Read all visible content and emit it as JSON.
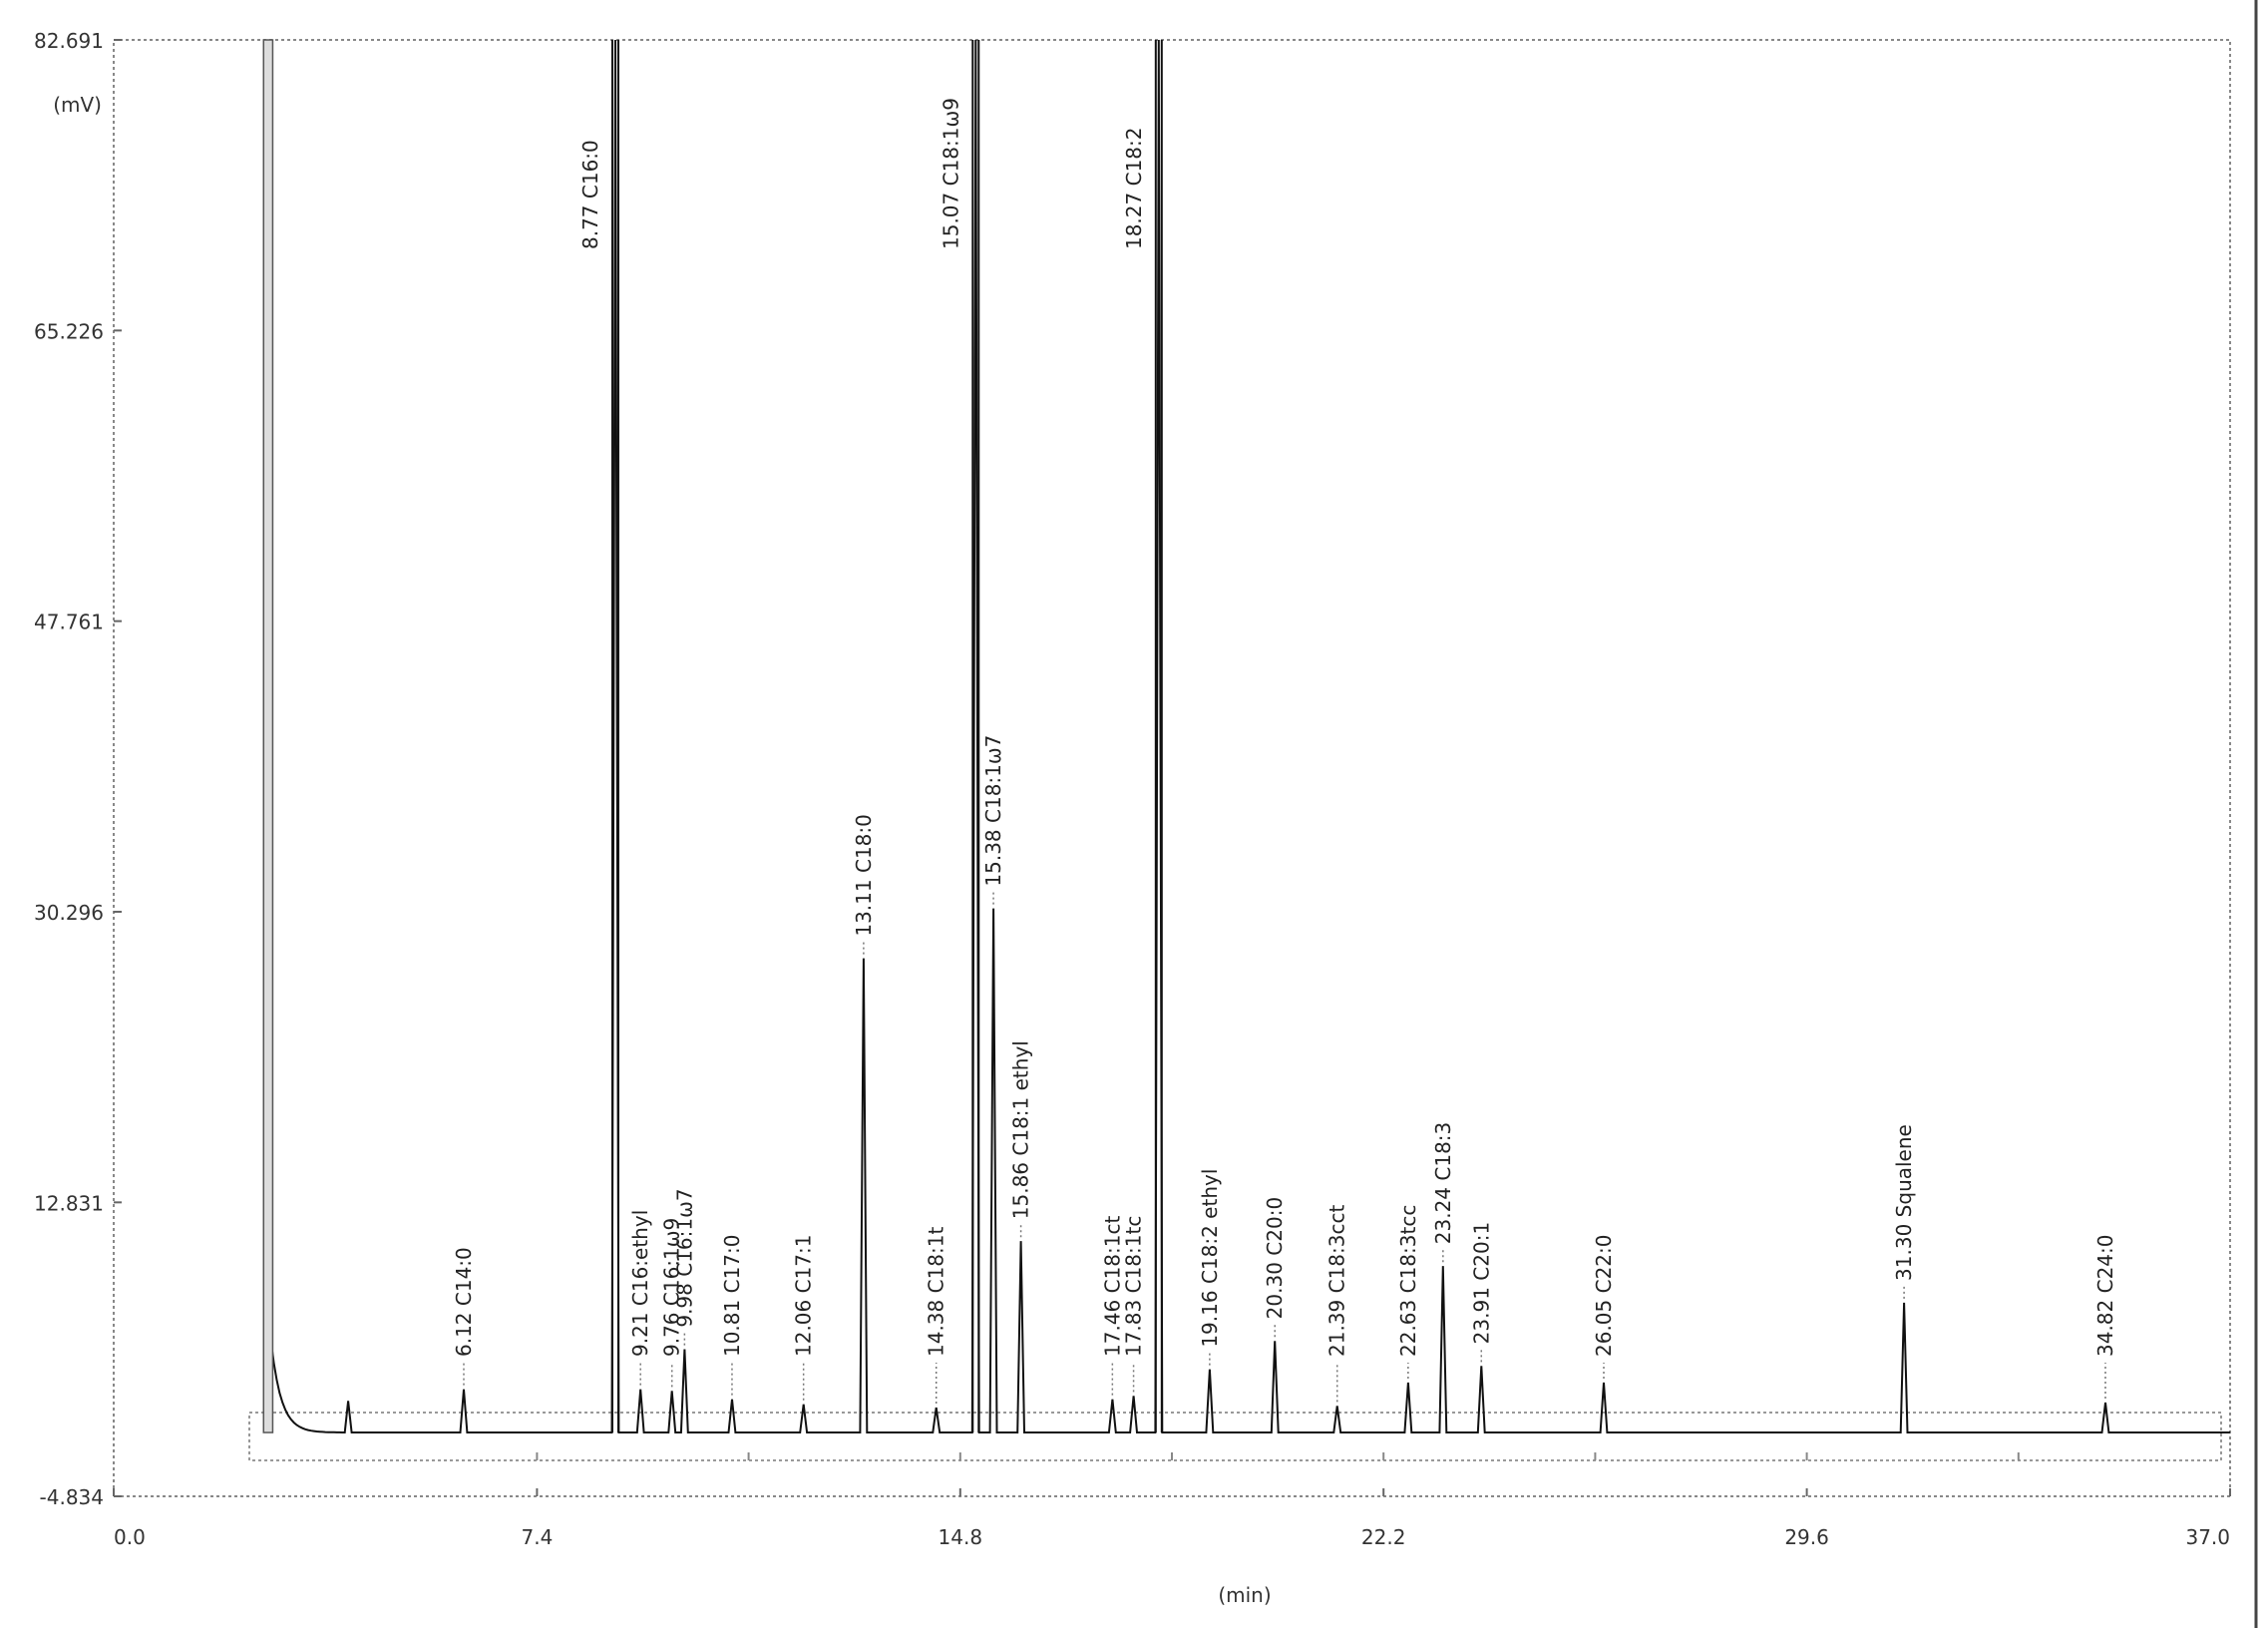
{
  "chart_data": {
    "type": "line",
    "title": "",
    "xlabel": "(min)",
    "ylabel": "(mV)",
    "xlim": [
      0.0,
      37.0
    ],
    "ylim": [
      -4.834,
      82.691
    ],
    "x_ticks": [
      "0.0",
      "7.4",
      "14.8",
      "22.2",
      "29.6",
      "37.0"
    ],
    "y_ticks": [
      "82.691",
      "65.226",
      "47.761",
      "30.296",
      "12.831",
      "-4.834"
    ],
    "grid": false,
    "series": [
      {
        "peaks": [
          {
            "rt": 2.7,
            "height": 82.691,
            "label": ""
          },
          {
            "rt": 4.1,
            "height": 0.9,
            "label": ""
          },
          {
            "rt": 6.12,
            "height": 1.6,
            "label": "6.12 C14:0"
          },
          {
            "rt": 8.77,
            "height": 82.691,
            "label": "8.77 C16:0"
          },
          {
            "rt": 9.21,
            "height": 1.6,
            "label": "9.21 C16:ethyl"
          },
          {
            "rt": 9.76,
            "height": 1.5,
            "label": "9.76 C16:1ω9"
          },
          {
            "rt": 9.98,
            "height": 4.0,
            "label": "9.98 C16:1ω7"
          },
          {
            "rt": 10.81,
            "height": 1.0,
            "label": "10.81 C17:0"
          },
          {
            "rt": 12.06,
            "height": 0.7,
            "label": "12.06 C17:1"
          },
          {
            "rt": 13.11,
            "height": 27.5,
            "label": "13.11 C18:0"
          },
          {
            "rt": 14.38,
            "height": 0.5,
            "label": "14.38 C18:1t"
          },
          {
            "rt": 15.07,
            "height": 82.691,
            "label": "15.07 C18:1ω9"
          },
          {
            "rt": 15.38,
            "height": 30.5,
            "label": "15.38 C18:1ω7"
          },
          {
            "rt": 15.86,
            "height": 10.5,
            "label": "15.86 C18:1 ethyl"
          },
          {
            "rt": 17.46,
            "height": 1.0,
            "label": "17.46 C18:1ct"
          },
          {
            "rt": 17.83,
            "height": 1.2,
            "label": "17.83 C18:1tc"
          },
          {
            "rt": 18.27,
            "height": 82.691,
            "label": "18.27 C18:2"
          },
          {
            "rt": 19.16,
            "height": 2.8,
            "label": "19.16 C18:2 ethyl"
          },
          {
            "rt": 20.3,
            "height": 4.5,
            "label": "20.30 C20:0"
          },
          {
            "rt": 21.39,
            "height": 0.6,
            "label": "21.39 C18:3cct"
          },
          {
            "rt": 22.63,
            "height": 2.0,
            "label": "22.63 C18:3tcc"
          },
          {
            "rt": 23.24,
            "height": 9.0,
            "label": "23.24 C18:3"
          },
          {
            "rt": 23.91,
            "height": 3.0,
            "label": "23.91 C20:1"
          },
          {
            "rt": 26.05,
            "height": 2.0,
            "label": "26.05 C22:0"
          },
          {
            "rt": 31.3,
            "height": 6.8,
            "label": "31.30 Squalene"
          },
          {
            "rt": 34.82,
            "height": 0.8,
            "label": "34.82 C24:0"
          }
        ]
      }
    ]
  }
}
